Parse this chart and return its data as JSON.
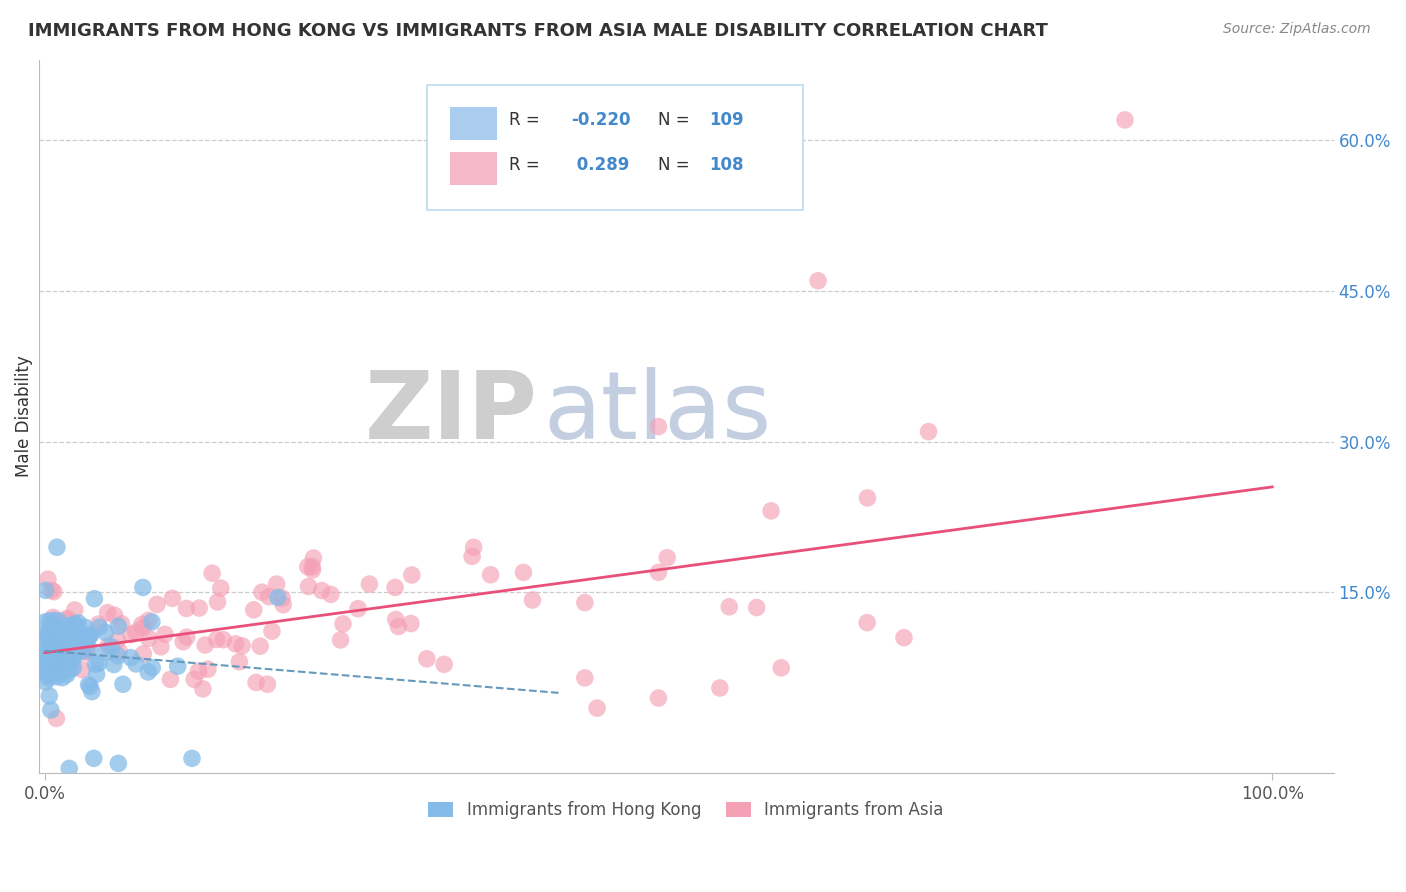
{
  "title": "IMMIGRANTS FROM HONG KONG VS IMMIGRANTS FROM ASIA MALE DISABILITY CORRELATION CHART",
  "source": "Source: ZipAtlas.com",
  "ylabel_label": "Male Disability",
  "ylim": [
    -0.03,
    0.68
  ],
  "xlim": [
    -0.005,
    1.05
  ],
  "yticks": [
    0.0,
    0.15,
    0.3,
    0.45,
    0.6
  ],
  "ytick_labels": [
    "",
    "15.0%",
    "30.0%",
    "45.0%",
    "60.0%"
  ],
  "xtick_labels": [
    "0.0%",
    "100.0%"
  ],
  "r_hk": -0.22,
  "n_hk": 109,
  "r_asia": 0.289,
  "n_asia": 108,
  "legend_label_hk": "Immigrants from Hong Kong",
  "legend_label_asia": "Immigrants from Asia",
  "color_hk": "#85BBE8",
  "color_asia": "#F4A0B5",
  "trendline_hk_color": "#6699BB",
  "trendline_asia_color": "#E8507A",
  "background_color": "#FFFFFF",
  "seed": 42,
  "asia_trendline_x0": 0.0,
  "asia_trendline_y0": 0.09,
  "asia_trendline_x1": 1.0,
  "asia_trendline_y1": 0.255,
  "hk_trendline_x0": 0.0,
  "hk_trendline_y0": 0.092,
  "hk_trendline_x1": 0.42,
  "hk_trendline_y1": 0.05
}
